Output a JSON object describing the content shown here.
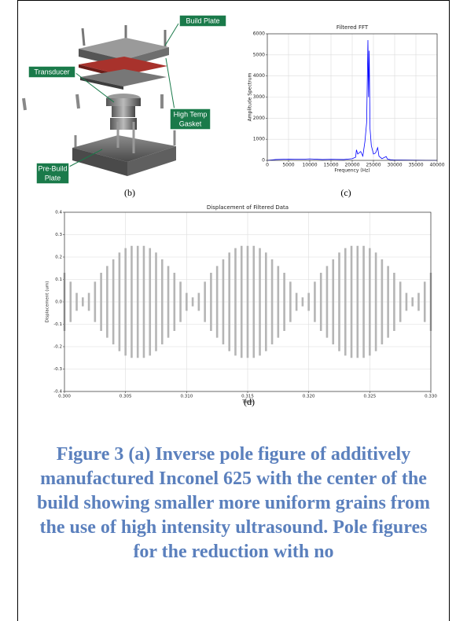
{
  "diagram": {
    "labels": [
      [
        "Build Plate"
      ],
      [
        "Transducer"
      ],
      [
        "High Temp",
        "Gasket"
      ],
      [
        "Pre-Build",
        "Plate"
      ]
    ],
    "panel_label": "(b)"
  },
  "chart_data": [
    {
      "type": "line",
      "title": "Filtered FFT",
      "panel_label": "(c)",
      "x_label": "Frequency (Hz)",
      "y_label": "Amplitude Spectrum",
      "x": [
        0,
        2000,
        5000,
        8000,
        10000,
        13000,
        15000,
        18000,
        20000,
        20800,
        21000,
        21300,
        22000,
        22500,
        23000,
        23400,
        23700,
        23850,
        24000,
        24200,
        24500,
        25000,
        25500,
        26000,
        26300,
        27000,
        28000,
        28300,
        29000,
        30000,
        35000,
        40000
      ],
      "values": [
        0,
        40,
        60,
        50,
        70,
        40,
        50,
        40,
        80,
        150,
        500,
        300,
        420,
        200,
        900,
        1800,
        5700,
        3000,
        5200,
        1500,
        700,
        300,
        350,
        600,
        200,
        80,
        180,
        60,
        30,
        20,
        10,
        0
      ],
      "color": "#0000ff",
      "xlim": [
        0,
        40000
      ],
      "ylim": [
        0,
        6000
      ],
      "xticks": [
        0,
        5000,
        10000,
        15000,
        20000,
        25000,
        30000,
        35000,
        40000
      ],
      "yticks": [
        0,
        1000,
        2000,
        3000,
        4000,
        5000,
        6000
      ],
      "grid": true
    },
    {
      "type": "band",
      "title": "Displacement of Filtered Data",
      "panel_label": "(d)",
      "x_label": "Time",
      "y_label": "Displacement (um)",
      "x": [
        0.3,
        0.3005,
        0.301,
        0.3015,
        0.302,
        0.3025,
        0.303,
        0.3035,
        0.304,
        0.3045,
        0.305,
        0.3055,
        0.306,
        0.3065,
        0.307,
        0.3075,
        0.308,
        0.3085,
        0.309,
        0.3095,
        0.31,
        0.3105,
        0.311,
        0.3115,
        0.312,
        0.3125,
        0.313,
        0.3135,
        0.314,
        0.3145,
        0.315,
        0.3155,
        0.316,
        0.3165,
        0.317,
        0.3175,
        0.318,
        0.3185,
        0.319,
        0.3195,
        0.32,
        0.3205,
        0.321,
        0.3215,
        0.322,
        0.3225,
        0.323,
        0.3235,
        0.324,
        0.3245,
        0.325,
        0.3255,
        0.326,
        0.3265,
        0.327,
        0.3275,
        0.328,
        0.3285,
        0.329,
        0.3295,
        0.33
      ],
      "series": [
        {
          "color": "#b5b5b5",
          "values": [
            0.13,
            0.09,
            0.04,
            0.02,
            0.04,
            0.09,
            0.13,
            0.16,
            0.19,
            0.22,
            0.24,
            0.25,
            0.25,
            0.25,
            0.24,
            0.22,
            0.19,
            0.16,
            0.13,
            0.09,
            0.04,
            0.02,
            0.04,
            0.09,
            0.13,
            0.16,
            0.19,
            0.22,
            0.24,
            0.25,
            0.25,
            0.25,
            0.24,
            0.22,
            0.19,
            0.16,
            0.13,
            0.09,
            0.04,
            0.02,
            0.04,
            0.09,
            0.13,
            0.16,
            0.19,
            0.22,
            0.24,
            0.25,
            0.25,
            0.25,
            0.24,
            0.22,
            0.19,
            0.16,
            0.13,
            0.09,
            0.04,
            0.02,
            0.04,
            0.09,
            0.13
          ]
        },
        {
          "color": "#b5b5b5",
          "values": [
            -0.13,
            -0.09,
            -0.04,
            -0.02,
            -0.04,
            -0.09,
            -0.13,
            -0.16,
            -0.19,
            -0.22,
            -0.24,
            -0.25,
            -0.25,
            -0.25,
            -0.24,
            -0.22,
            -0.19,
            -0.16,
            -0.13,
            -0.09,
            -0.04,
            -0.02,
            -0.04,
            -0.09,
            -0.13,
            -0.16,
            -0.19,
            -0.22,
            -0.24,
            -0.25,
            -0.25,
            -0.25,
            -0.24,
            -0.22,
            -0.19,
            -0.16,
            -0.13,
            -0.09,
            -0.04,
            -0.02,
            -0.04,
            -0.09,
            -0.13,
            -0.16,
            -0.19,
            -0.22,
            -0.24,
            -0.25,
            -0.25,
            -0.25,
            -0.24,
            -0.22,
            -0.19,
            -0.16,
            -0.13,
            -0.09,
            -0.04,
            -0.02,
            -0.04,
            -0.09,
            -0.13
          ]
        }
      ],
      "xlim": [
        0.3,
        0.33
      ],
      "ylim": [
        -0.4,
        0.4
      ],
      "xticks": [
        {
          "value": 0.3,
          "label": "0.300"
        },
        {
          "value": 0.305,
          "label": "0.305"
        },
        {
          "value": 0.31,
          "label": "0.310"
        },
        {
          "value": 0.315,
          "label": "0.315"
        },
        {
          "value": 0.32,
          "label": "0.320"
        },
        {
          "value": 0.325,
          "label": "0.325"
        },
        {
          "value": 0.33,
          "label": "0.330"
        }
      ],
      "yticks": [
        -0.4,
        -0.3,
        -0.2,
        -0.1,
        {
          "value": 0,
          "label": "0.0"
        },
        0.1,
        0.2,
        0.3,
        0.4
      ],
      "grid": true
    }
  ],
  "caption": "Figure 3 (a) Inverse pole figure of additively manufactured Inconel 625 with the center of the build showing smaller more uniform grains from the use of high intensity ultrasound. Pole figures for the reduction with no"
}
